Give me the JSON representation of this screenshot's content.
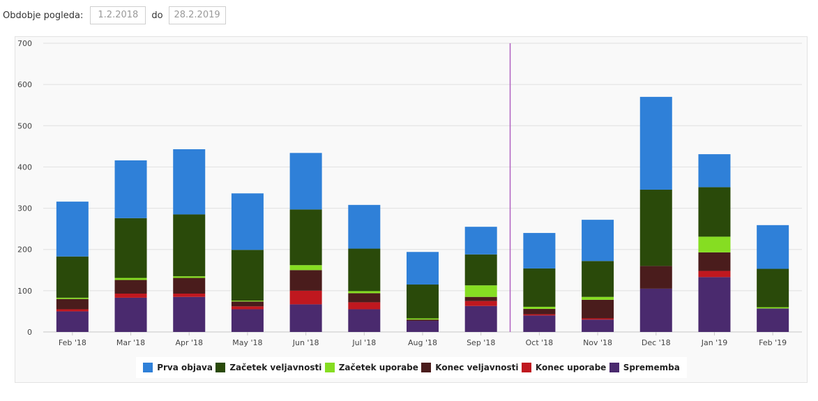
{
  "filter": {
    "label": "Obdobje pogleda:",
    "from_value": "1.2.2018",
    "separator": "do",
    "to_value": "28.2.2019"
  },
  "chart_data": {
    "type": "bar",
    "stacked": true,
    "categories": [
      "Feb '18",
      "Mar '18",
      "Apr '18",
      "May '18",
      "Jun '18",
      "Jul '18",
      "Aug '18",
      "Sep '18",
      "Oct '18",
      "Nov '18",
      "Dec '18",
      "Jan '19",
      "Feb '19"
    ],
    "ylim": [
      0,
      700
    ],
    "yticks": [
      0,
      100,
      200,
      300,
      400,
      500,
      600,
      700
    ],
    "grid": true,
    "legend_position": "bottom",
    "series": [
      {
        "name": "Sprememba",
        "color": "#4a2a6e",
        "values": [
          50,
          83,
          85,
          55,
          67,
          55,
          27,
          63,
          40,
          30,
          105,
          133,
          57
        ]
      },
      {
        "name": "Konec uporabe",
        "color": "#c0181f",
        "values": [
          5,
          10,
          8,
          7,
          33,
          17,
          0,
          12,
          3,
          3,
          0,
          15,
          0
        ]
      },
      {
        "name": "Konec veljavnosti",
        "color": "#4a1c1c",
        "values": [
          25,
          33,
          38,
          12,
          50,
          22,
          3,
          10,
          13,
          45,
          55,
          45,
          0
        ]
      },
      {
        "name": "Začetek uporabe",
        "color": "#86dd22",
        "values": [
          3,
          5,
          4,
          2,
          12,
          5,
          3,
          28,
          5,
          7,
          0,
          38,
          3
        ]
      },
      {
        "name": "Začetek veljavnosti",
        "color": "#2a4a0a",
        "values": [
          100,
          145,
          150,
          123,
          135,
          103,
          82,
          75,
          93,
          87,
          185,
          120,
          93
        ]
      },
      {
        "name": "Prva objava",
        "color": "#2f80d8",
        "values": [
          133,
          140,
          158,
          137,
          137,
          106,
          79,
          67,
          86,
          100,
          225,
          80,
          106
        ]
      }
    ],
    "legend_order": [
      "Prva objava",
      "Začetek veljavnosti",
      "Začetek uporabe",
      "Konec veljavnosti",
      "Konec uporabe",
      "Sprememba"
    ],
    "marker_line": {
      "between": [
        "Sep '18",
        "Oct '18"
      ],
      "color": "#b060c0"
    }
  }
}
